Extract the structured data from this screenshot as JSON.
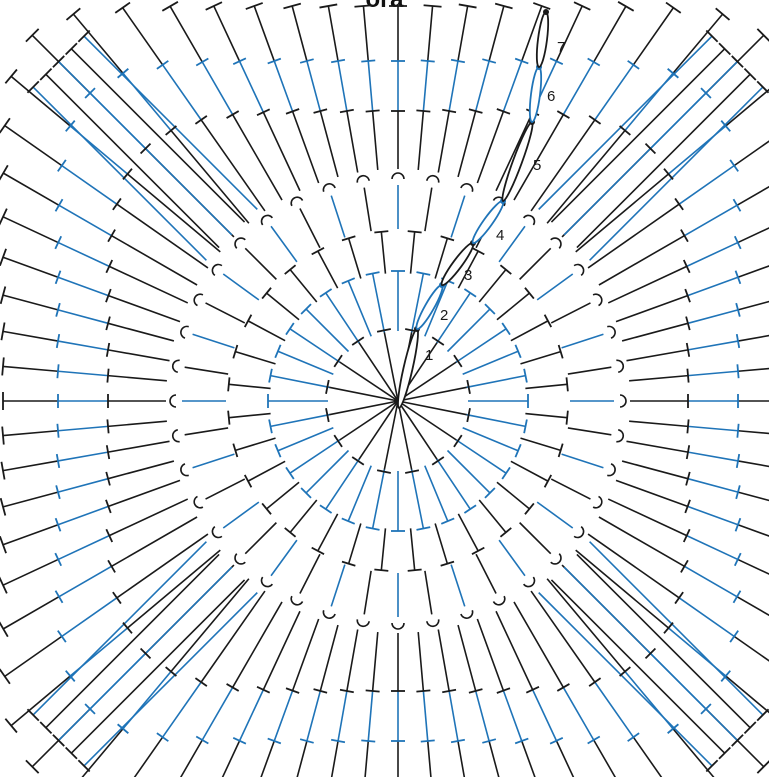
{
  "title_fragment": "ога",
  "colors": {
    "black": "#1a1a1a",
    "blue": "#1f74b8"
  },
  "round_labels": [
    "1",
    "2",
    "3",
    "4",
    "5",
    "6",
    "7"
  ]
}
